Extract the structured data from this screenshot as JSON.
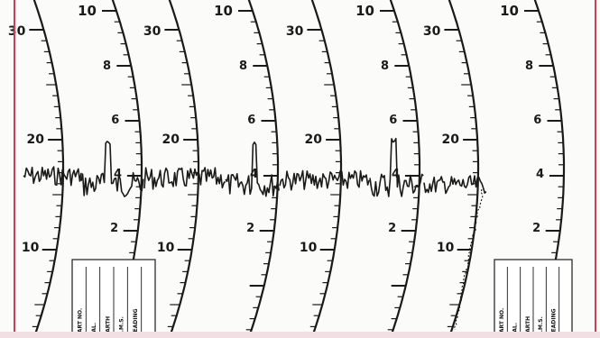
{
  "chart_strip": {
    "scale_a_labels": [
      "10",
      "8",
      "6",
      "4",
      "2"
    ],
    "scale_b_labels": [
      "30",
      "20",
      "10"
    ],
    "legend_box_left": [
      "PART NO.",
      "CAL.",
      "EARTH",
      "R.M.S.",
      "READING"
    ],
    "legend_box_right": [
      "PART NO.",
      "CAL.",
      "EARTH",
      "R.M.S.",
      "READING"
    ],
    "colors": {
      "ink": "#1a1a1a",
      "paper": "#fbfbf9",
      "border": "#c9405a"
    }
  }
}
